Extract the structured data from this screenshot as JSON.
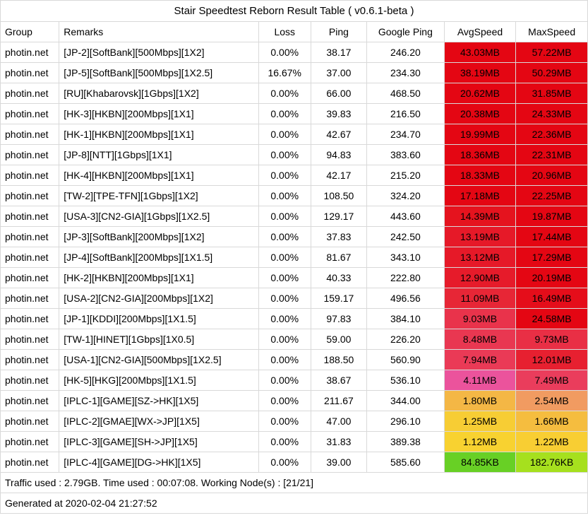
{
  "title": "Stair Speedtest Reborn Result Table ( v0.6.1-beta )",
  "headers": {
    "group": "Group",
    "remarks": "Remarks",
    "loss": "Loss",
    "ping": "Ping",
    "gping": "Google Ping",
    "avg": "AvgSpeed",
    "max": "MaxSpeed"
  },
  "rows": [
    {
      "group": "photin.net",
      "remarks": "[JP-2][SoftBank][500Mbps][1X2]",
      "loss": "0.00%",
      "ping": "38.17",
      "gping": "246.20",
      "avg": "43.03MB",
      "max": "57.22MB",
      "avg_bg": "#e40613",
      "max_bg": "#e40613"
    },
    {
      "group": "photin.net",
      "remarks": "[JP-5][SoftBank][500Mbps][1X2.5]",
      "loss": "16.67%",
      "ping": "37.00",
      "gping": "234.30",
      "avg": "38.19MB",
      "max": "50.29MB",
      "avg_bg": "#e40613",
      "max_bg": "#e40613"
    },
    {
      "group": "photin.net",
      "remarks": "[RU][Khabarovsk][1Gbps][1X2]",
      "loss": "0.00%",
      "ping": "66.00",
      "gping": "468.50",
      "avg": "20.62MB",
      "max": "31.85MB",
      "avg_bg": "#e40613",
      "max_bg": "#e40613"
    },
    {
      "group": "photin.net",
      "remarks": "[HK-3][HKBN][200Mbps][1X1]",
      "loss": "0.00%",
      "ping": "39.83",
      "gping": "216.50",
      "avg": "20.38MB",
      "max": "24.33MB",
      "avg_bg": "#e40613",
      "max_bg": "#e40613"
    },
    {
      "group": "photin.net",
      "remarks": "[HK-1][HKBN][200Mbps][1X1]",
      "loss": "0.00%",
      "ping": "42.67",
      "gping": "234.70",
      "avg": "19.99MB",
      "max": "22.36MB",
      "avg_bg": "#e40613",
      "max_bg": "#e40613"
    },
    {
      "group": "photin.net",
      "remarks": "[JP-8][NTT][1Gbps][1X1]",
      "loss": "0.00%",
      "ping": "94.83",
      "gping": "383.60",
      "avg": "18.36MB",
      "max": "22.31MB",
      "avg_bg": "#e40613",
      "max_bg": "#e40613"
    },
    {
      "group": "photin.net",
      "remarks": "[HK-4][HKBN][200Mbps][1X1]",
      "loss": "0.00%",
      "ping": "42.17",
      "gping": "215.20",
      "avg": "18.33MB",
      "max": "20.96MB",
      "avg_bg": "#e40613",
      "max_bg": "#e40613"
    },
    {
      "group": "photin.net",
      "remarks": "[TW-2][TPE-TFN][1Gbps][1X2]",
      "loss": "0.00%",
      "ping": "108.50",
      "gping": "324.20",
      "avg": "17.18MB",
      "max": "22.25MB",
      "avg_bg": "#e40613",
      "max_bg": "#e40613"
    },
    {
      "group": "photin.net",
      "remarks": "[USA-3][CN2-GIA][1Gbps][1X2.5]",
      "loss": "0.00%",
      "ping": "129.17",
      "gping": "443.60",
      "avg": "14.39MB",
      "max": "19.87MB",
      "avg_bg": "#e5131e",
      "max_bg": "#e40613"
    },
    {
      "group": "photin.net",
      "remarks": "[JP-3][SoftBank][200Mbps][1X2]",
      "loss": "0.00%",
      "ping": "37.83",
      "gping": "242.50",
      "avg": "13.19MB",
      "max": "17.44MB",
      "avg_bg": "#e61928",
      "max_bg": "#e40613"
    },
    {
      "group": "photin.net",
      "remarks": "[JP-4][SoftBank][200Mbps][1X1.5]",
      "loss": "0.00%",
      "ping": "81.67",
      "gping": "343.10",
      "avg": "13.12MB",
      "max": "17.29MB",
      "avg_bg": "#e61928",
      "max_bg": "#e40613"
    },
    {
      "group": "photin.net",
      "remarks": "[HK-2][HKBN][200Mbps][1X1]",
      "loss": "0.00%",
      "ping": "40.33",
      "gping": "222.80",
      "avg": "12.90MB",
      "max": "20.19MB",
      "avg_bg": "#e61b2a",
      "max_bg": "#e40613"
    },
    {
      "group": "photin.net",
      "remarks": "[USA-2][CN2-GIA][200Mbps][1X2]",
      "loss": "0.00%",
      "ping": "159.17",
      "gping": "496.56",
      "avg": "11.09MB",
      "max": "16.49MB",
      "avg_bg": "#e72636",
      "max_bg": "#e50d1a"
    },
    {
      "group": "photin.net",
      "remarks": "[JP-1][KDDI][200Mbps][1X1.5]",
      "loss": "0.00%",
      "ping": "97.83",
      "gping": "384.10",
      "avg": "9.03MB",
      "max": "24.58MB",
      "avg_bg": "#e9334b",
      "max_bg": "#e40613"
    },
    {
      "group": "photin.net",
      "remarks": "[TW-1][HINET][1Gbps][1X0.5]",
      "loss": "0.00%",
      "ping": "59.00",
      "gping": "226.20",
      "avg": "8.48MB",
      "max": "9.73MB",
      "avg_bg": "#e93751",
      "max_bg": "#e92f45"
    },
    {
      "group": "photin.net",
      "remarks": "[USA-1][CN2-GIA][500Mbps][1X2.5]",
      "loss": "0.00%",
      "ping": "188.50",
      "gping": "560.90",
      "avg": "7.94MB",
      "max": "12.01MB",
      "avg_bg": "#ea3a56",
      "max_bg": "#e72030"
    },
    {
      "group": "photin.net",
      "remarks": "[HK-5][HKG][200Mbps][1X1.5]",
      "loss": "0.00%",
      "ping": "38.67",
      "gping": "536.10",
      "avg": "4.11MB",
      "max": "7.49MB",
      "avg_bg": "#eb539c",
      "max_bg": "#ea3d5c"
    },
    {
      "group": "photin.net",
      "remarks": "[IPLC-1][GAME][SZ->HK][1X5]",
      "loss": "0.00%",
      "ping": "211.67",
      "gping": "344.00",
      "avg": "1.80MB",
      "max": "2.54MB",
      "avg_bg": "#f4b745",
      "max_bg": "#f19b61"
    },
    {
      "group": "photin.net",
      "remarks": "[IPLC-2][GMAE][WX->JP][1X5]",
      "loss": "0.00%",
      "ping": "47.00",
      "gping": "296.10",
      "avg": "1.25MB",
      "max": "1.66MB",
      "avg_bg": "#f7cd34",
      "max_bg": "#f5bd3f"
    },
    {
      "group": "photin.net",
      "remarks": "[IPLC-3][GAME][SH->JP][1X5]",
      "loss": "0.00%",
      "ping": "31.83",
      "gping": "389.38",
      "avg": "1.12MB",
      "max": "1.22MB",
      "avg_bg": "#f8d230",
      "max_bg": "#f8ce33"
    },
    {
      "group": "photin.net",
      "remarks": "[IPLC-4][GAME][DG->HK][1X5]",
      "loss": "0.00%",
      "ping": "39.00",
      "gping": "585.60",
      "avg": "84.85KB",
      "max": "182.76KB",
      "avg_bg": "#68d025",
      "max_bg": "#a6e01e"
    }
  ],
  "footer1": "Traffic used : 2.79GB. Time used : 00:07:08. Working Node(s) : [21/21]",
  "footer2": "Generated at 2020-02-04 21:27:52"
}
